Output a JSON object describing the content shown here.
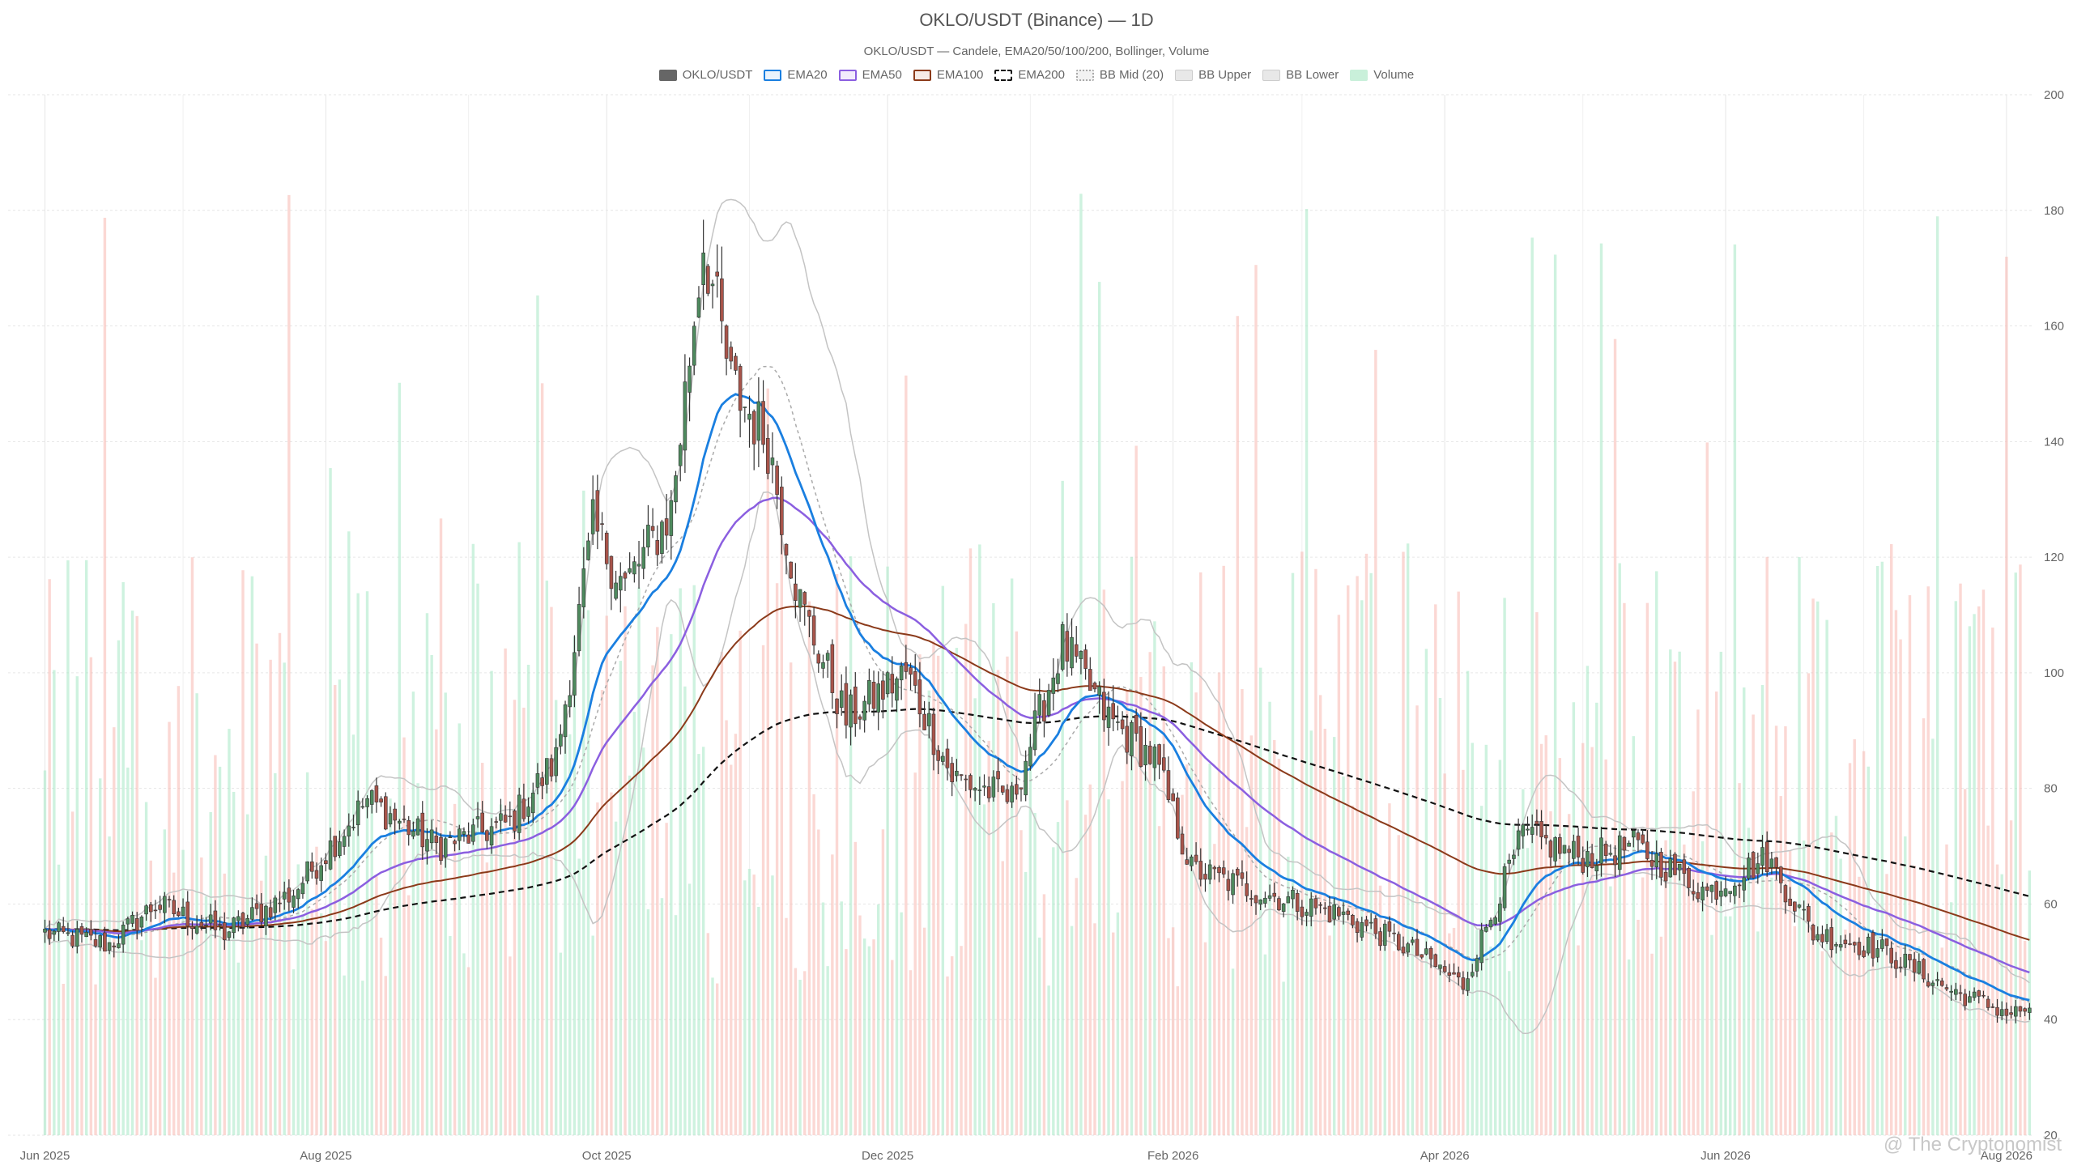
{
  "chart_data": {
    "type": "candlestick",
    "title": "OKLO/USDT (Binance) — 1D",
    "subtitle": "OKLO/USDT — Candele, EMA20/50/100/200, Bollinger, Volume",
    "legend": [
      {
        "label": "OKLO/USDT",
        "color": "#666666",
        "style": "solid"
      },
      {
        "label": "EMA20",
        "color": "#1a7fe0",
        "style": "line"
      },
      {
        "label": "EMA50",
        "color": "#8b5fe0",
        "style": "line"
      },
      {
        "label": "EMA100",
        "color": "#8b3a1a",
        "style": "line"
      },
      {
        "label": "EMA200",
        "color": "#111111",
        "style": "dashed"
      },
      {
        "label": "BB Mid (20)",
        "color": "#aaaaaa",
        "style": "dotted"
      },
      {
        "label": "BB Upper",
        "color": "#bbbbbb",
        "style": "box"
      },
      {
        "label": "BB Lower",
        "color": "#bbbbbb",
        "style": "box"
      },
      {
        "label": "Volume",
        "color": "#a6e8c4",
        "style": "box"
      }
    ],
    "legend_position": "top-center",
    "y_axis": {
      "position": "right",
      "min": 20,
      "max": 200,
      "ticks": [
        "20",
        "40",
        "60",
        "80",
        "100",
        "120",
        "140",
        "160",
        "180",
        "200"
      ]
    },
    "x_axis": {
      "ticks": [
        "Jun 2025",
        "Aug 2025",
        "Oct 2025",
        "Dec 2025",
        "Feb 2026",
        "Apr 2026",
        "Jun 2026",
        "Aug 2026"
      ]
    },
    "grid": true,
    "colors": {
      "up": "#4e8a5e",
      "down": "#a8544a",
      "vol_up": "#a6e8c4",
      "vol_down": "#f7b8b0"
    },
    "price_anchors": [
      [
        "2025-06-01",
        55
      ],
      [
        "2025-06-15",
        53
      ],
      [
        "2025-06-25",
        60
      ],
      [
        "2025-07-10",
        55
      ],
      [
        "2025-07-25",
        62
      ],
      [
        "2025-08-10",
        78
      ],
      [
        "2025-08-25",
        70
      ],
      [
        "2025-09-10",
        74
      ],
      [
        "2025-09-20",
        85
      ],
      [
        "2025-09-28",
        125
      ],
      [
        "2025-10-05",
        115
      ],
      [
        "2025-10-15",
        128
      ],
      [
        "2025-10-22",
        175
      ],
      [
        "2025-10-28",
        150
      ],
      [
        "2025-11-05",
        140
      ],
      [
        "2025-11-12",
        112
      ],
      [
        "2025-11-22",
        92
      ],
      [
        "2025-12-05",
        100
      ],
      [
        "2025-12-15",
        82
      ],
      [
        "2025-12-28",
        78
      ],
      [
        "2026-01-08",
        105
      ],
      [
        "2026-01-18",
        92
      ],
      [
        "2026-01-28",
        85
      ],
      [
        "2026-02-05",
        66
      ],
      [
        "2026-02-20",
        62
      ],
      [
        "2026-03-10",
        58
      ],
      [
        "2026-03-25",
        52
      ],
      [
        "2026-04-05",
        46
      ],
      [
        "2026-04-18",
        72
      ],
      [
        "2026-05-01",
        68
      ],
      [
        "2026-05-12",
        70
      ],
      [
        "2026-05-28",
        62
      ],
      [
        "2026-06-10",
        68
      ],
      [
        "2026-06-20",
        55
      ],
      [
        "2026-07-05",
        52
      ],
      [
        "2026-07-20",
        45
      ],
      [
        "2026-08-02",
        41
      ],
      [
        "2026-08-06",
        42
      ]
    ],
    "last_close": 42
  },
  "watermark": "@ The Cryptonomist"
}
